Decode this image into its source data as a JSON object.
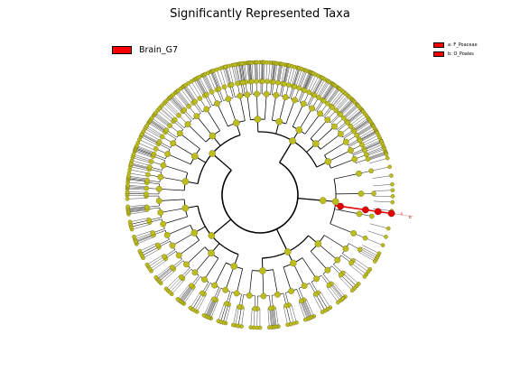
{
  "title": "Significantly Represented Taxa",
  "legend": {
    "group_label": "Brain_G7",
    "group_color": "#ff0000",
    "highlights": [
      {
        "text": "a: F_Poaceae"
      },
      {
        "text": "b: O_Poales"
      }
    ]
  },
  "colors": {
    "node_fill": "#bdbd1f",
    "node_stroke": "#6b6b10",
    "branch": "#000000",
    "highlight": "#e60000"
  },
  "clade_letters": [
    "a",
    "b"
  ],
  "diagram": {
    "type": "circular cladogram",
    "levels": 6,
    "highlighted_clade": "O_Poales",
    "leaf_count": 150
  }
}
